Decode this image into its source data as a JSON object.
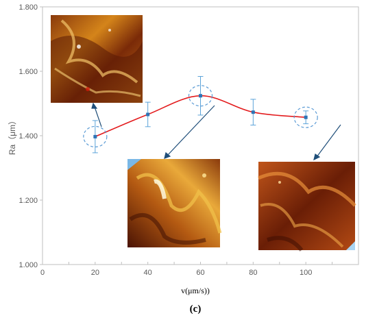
{
  "chart_data": {
    "type": "line",
    "ylabel": "Ra（μm）",
    "xlabel": "v(μm/s))",
    "caption": "(c)",
    "xlim": [
      0,
      120
    ],
    "ylim": [
      1.0,
      1.8
    ],
    "x_ticks": [
      "0",
      "20",
      "40",
      "60",
      "80",
      "100"
    ],
    "y_ticks": [
      "1.000",
      "1.200",
      "1.400",
      "1.600",
      "1.800"
    ],
    "grid": false,
    "line_color": "#e31a1c",
    "marker_color": "#2e75b6",
    "errorbar_color": "#5ba3d9",
    "series": [
      {
        "x": [
          20,
          40,
          60,
          80,
          100
        ],
        "y": [
          1.397,
          1.466,
          1.524,
          1.473,
          1.457
        ],
        "error": [
          0.05,
          0.038,
          0.06,
          0.04,
          0.02
        ]
      }
    ],
    "highlighted_points": [
      20,
      60,
      100
    ],
    "insets": [
      {
        "name": "afm-inset-20",
        "points_to_x": 20,
        "description_icon": "afm-surface-topography"
      },
      {
        "name": "afm-inset-60",
        "points_to_x": 60,
        "description_icon": "afm-surface-topography"
      },
      {
        "name": "afm-inset-100",
        "points_to_x": 100,
        "description_icon": "afm-surface-topography"
      }
    ]
  }
}
